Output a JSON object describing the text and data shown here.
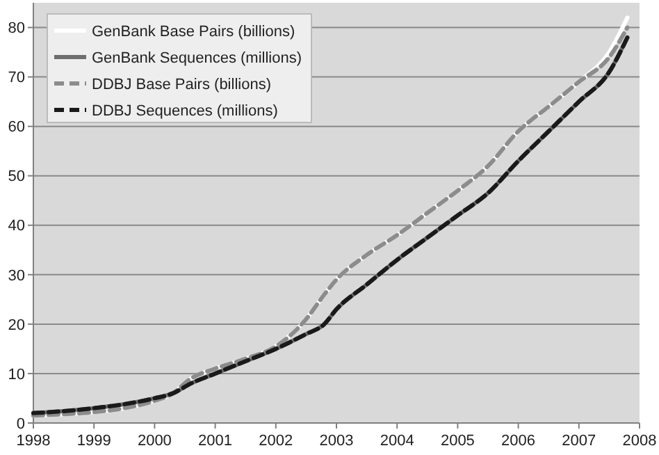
{
  "chart_data": {
    "type": "line",
    "xlim": [
      1998,
      2008
    ],
    "xticks": [
      1998,
      1999,
      2000,
      2001,
      2002,
      2003,
      2004,
      2005,
      2006,
      2007,
      2008
    ],
    "ylim": [
      0,
      85
    ],
    "yticks": [
      0,
      10,
      20,
      30,
      40,
      50,
      60,
      70,
      80
    ],
    "grid": "y",
    "legend": "top left",
    "series": [
      {
        "name": "GenBank Base Pairs (billions)",
        "color": "#ffffff",
        "line_style": "solid",
        "x": [
          1998,
          1998.5,
          1999,
          1999.5,
          2000,
          2000.3,
          2000.6,
          2001,
          2001.5,
          2002,
          2002.5,
          2002.8,
          2003,
          2003.5,
          2004,
          2004.5,
          2005,
          2005.5,
          2006,
          2006.5,
          2007,
          2007.5,
          2007.8
        ],
        "values": [
          1.5,
          1.8,
          2.2,
          3,
          4.5,
          6,
          9,
          11,
          13,
          15.5,
          21,
          26,
          29,
          34,
          38,
          42.5,
          47,
          52,
          59,
          64,
          69,
          75,
          82
        ]
      },
      {
        "name": "GenBank Sequences (millions)",
        "color": "#6e6e6e",
        "line_style": "solid",
        "x": [
          1998,
          1998.5,
          1999,
          1999.5,
          2000,
          2000.3,
          2000.6,
          2001,
          2001.5,
          2002,
          2002.5,
          2002.8,
          2003,
          2003.5,
          2004,
          2004.5,
          2005,
          2005.5,
          2006,
          2006.5,
          2007,
          2007.5,
          2007.8
        ],
        "values": [
          2,
          2.4,
          3,
          3.8,
          5,
          6,
          8,
          10,
          12.5,
          15,
          18,
          20,
          23,
          28,
          33,
          37.5,
          42,
          46.5,
          53,
          59,
          65,
          71,
          78
        ]
      },
      {
        "name": "DDBJ Base Pairs (billions)",
        "color": "#8c8c8c",
        "line_style": "dashed",
        "x": [
          1998,
          1998.5,
          1999,
          1999.5,
          2000,
          2000.3,
          2000.6,
          2001,
          2001.5,
          2002,
          2002.5,
          2002.8,
          2003,
          2003.5,
          2004,
          2004.5,
          2005,
          2005.5,
          2006,
          2006.5,
          2007,
          2007.5,
          2007.8
        ],
        "values": [
          1.5,
          1.8,
          2.2,
          3,
          4.5,
          6,
          9,
          11,
          13,
          15.5,
          21,
          26,
          29,
          34,
          38,
          42.5,
          47,
          52,
          59,
          64,
          69,
          74,
          80
        ]
      },
      {
        "name": "DDBJ Sequences (millions)",
        "color": "#1a1a1a",
        "line_style": "dashed",
        "x": [
          1998,
          1998.5,
          1999,
          1999.5,
          2000,
          2000.3,
          2000.6,
          2001,
          2001.5,
          2002,
          2002.5,
          2002.8,
          2003,
          2003.5,
          2004,
          2004.5,
          2005,
          2005.5,
          2006,
          2006.5,
          2007,
          2007.5,
          2007.8
        ],
        "values": [
          2,
          2.4,
          3,
          3.8,
          5,
          6,
          8,
          10,
          12.5,
          15,
          18,
          20,
          23,
          28,
          33,
          37.5,
          42,
          46.5,
          53,
          59,
          65,
          71,
          78
        ]
      }
    ]
  }
}
